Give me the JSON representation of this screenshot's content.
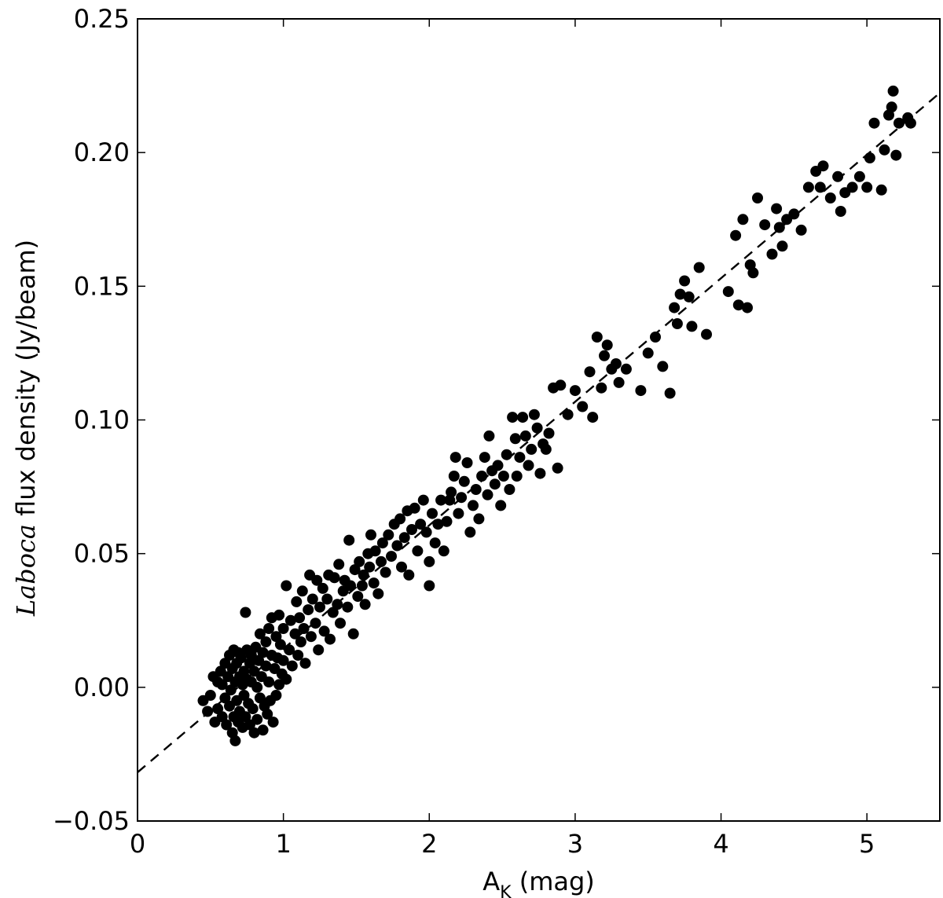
{
  "chart_data": {
    "type": "scatter",
    "title": "",
    "xlabel": {
      "main": "A",
      "sub": "K",
      "rest": " (mag)"
    },
    "ylabel": {
      "italic": "Laboca",
      "rest": " flux density (Jy/beam)"
    },
    "xlim": [
      0,
      5.5
    ],
    "ylim": [
      -0.05,
      0.25
    ],
    "xticks": [
      0,
      1,
      2,
      3,
      4,
      5
    ],
    "xtick_labels": [
      "0",
      "1",
      "2",
      "3",
      "4",
      "5"
    ],
    "yticks": [
      -0.05,
      0,
      0.05,
      0.1,
      0.15,
      0.2,
      0.25
    ],
    "ytick_labels": [
      "−0.05",
      "0.00",
      "0.05",
      "0.10",
      "0.15",
      "0.20",
      "0.25"
    ],
    "grid": false,
    "marker_color": "#000000",
    "fit_line": {
      "style": "dashed",
      "color": "#000000",
      "slope": 0.0462,
      "intercept": -0.0318
    },
    "series": [
      {
        "points": [
          [
            0.45,
            -0.005
          ],
          [
            0.48,
            -0.009
          ],
          [
            0.5,
            -0.003
          ],
          [
            0.52,
            0.004
          ],
          [
            0.53,
            -0.013
          ],
          [
            0.55,
            0.002
          ],
          [
            0.55,
            -0.008
          ],
          [
            0.57,
            0.006
          ],
          [
            0.58,
            -0.011
          ],
          [
            0.58,
            0.001
          ],
          [
            0.6,
            0.009
          ],
          [
            0.6,
            -0.004
          ],
          [
            0.61,
            -0.014
          ],
          [
            0.62,
            0.004
          ],
          [
            0.63,
            0.012
          ],
          [
            0.63,
            -0.007
          ],
          [
            0.64,
            -0.001
          ],
          [
            0.65,
            0.007
          ],
          [
            0.65,
            -0.017
          ],
          [
            0.66,
            0.014
          ],
          [
            0.66,
            -0.011
          ],
          [
            0.67,
            0.002
          ],
          [
            0.67,
            -0.02
          ],
          [
            0.68,
            0.009
          ],
          [
            0.68,
            -0.005
          ],
          [
            0.69,
            0.013
          ],
          [
            0.69,
            -0.013
          ],
          [
            0.7,
            0.004
          ],
          [
            0.7,
            -0.009
          ],
          [
            0.71,
            0.011
          ],
          [
            0.72,
            0.001
          ],
          [
            0.72,
            -0.015
          ],
          [
            0.73,
            0.006
          ],
          [
            0.73,
            -0.003
          ],
          [
            0.74,
            0.028
          ],
          [
            0.74,
            -0.011
          ],
          [
            0.75,
            0.014
          ],
          [
            0.75,
            0.003
          ],
          [
            0.76,
            -0.006
          ],
          [
            0.77,
            0.009
          ],
          [
            0.77,
            -0.014
          ],
          [
            0.78,
            0.002
          ],
          [
            0.78,
            0.012
          ],
          [
            0.79,
            -0.008
          ],
          [
            0.8,
            0.006
          ],
          [
            0.8,
            -0.017
          ],
          [
            0.81,
            0.015
          ],
          [
            0.82,
            0.0
          ],
          [
            0.82,
            -0.012
          ],
          [
            0.83,
            0.01
          ],
          [
            0.84,
            -0.004
          ],
          [
            0.84,
            0.02
          ],
          [
            0.85,
            0.004
          ],
          [
            0.86,
            -0.016
          ],
          [
            0.86,
            0.013
          ],
          [
            0.87,
            -0.007
          ],
          [
            0.88,
            0.008
          ],
          [
            0.88,
            0.017
          ],
          [
            0.89,
            -0.01
          ],
          [
            0.9,
            0.002
          ],
          [
            0.9,
            0.022
          ],
          [
            0.91,
            -0.005
          ],
          [
            0.92,
            0.012
          ],
          [
            0.92,
            0.026
          ],
          [
            0.93,
            -0.013
          ],
          [
            0.94,
            0.007
          ],
          [
            0.95,
            0.019
          ],
          [
            0.95,
            -0.003
          ],
          [
            0.96,
            0.011
          ],
          [
            0.97,
            0.027
          ],
          [
            0.97,
            0.001
          ],
          [
            0.98,
            0.016
          ],
          [
            0.99,
            0.005
          ],
          [
            1.0,
            0.022
          ],
          [
            1.0,
            0.01
          ],
          [
            1.02,
            0.038
          ],
          [
            1.02,
            0.003
          ],
          [
            1.04,
            0.014
          ],
          [
            1.05,
            0.025
          ],
          [
            1.06,
            0.008
          ],
          [
            1.08,
            0.02
          ],
          [
            1.09,
            0.032
          ],
          [
            1.1,
            0.012
          ],
          [
            1.11,
            0.026
          ],
          [
            1.12,
            0.017
          ],
          [
            1.13,
            0.036
          ],
          [
            1.14,
            0.022
          ],
          [
            1.15,
            0.009
          ],
          [
            1.17,
            0.029
          ],
          [
            1.18,
            0.042
          ],
          [
            1.19,
            0.019
          ],
          [
            1.2,
            0.033
          ],
          [
            1.22,
            0.024
          ],
          [
            1.23,
            0.04
          ],
          [
            1.24,
            0.014
          ],
          [
            1.25,
            0.03
          ],
          [
            1.27,
            0.037
          ],
          [
            1.28,
            0.021
          ],
          [
            1.3,
            0.033
          ],
          [
            1.31,
            0.042
          ],
          [
            1.32,
            0.018
          ],
          [
            1.34,
            0.028
          ],
          [
            1.35,
            0.041
          ],
          [
            1.37,
            0.031
          ],
          [
            1.38,
            0.046
          ],
          [
            1.39,
            0.024
          ],
          [
            1.41,
            0.036
          ],
          [
            1.42,
            0.04
          ],
          [
            1.44,
            0.03
          ],
          [
            1.45,
            0.055
          ],
          [
            1.46,
            0.038
          ],
          [
            1.48,
            0.02
          ],
          [
            1.49,
            0.044
          ],
          [
            1.51,
            0.034
          ],
          [
            1.52,
            0.047
          ],
          [
            1.54,
            0.038
          ],
          [
            1.55,
            0.042
          ],
          [
            1.56,
            0.031
          ],
          [
            1.58,
            0.05
          ],
          [
            1.59,
            0.045
          ],
          [
            1.6,
            0.057
          ],
          [
            1.62,
            0.039
          ],
          [
            1.63,
            0.051
          ],
          [
            1.65,
            0.035
          ],
          [
            1.67,
            0.047
          ],
          [
            1.68,
            0.054
          ],
          [
            1.7,
            0.043
          ],
          [
            1.72,
            0.057
          ],
          [
            1.74,
            0.049
          ],
          [
            1.76,
            0.061
          ],
          [
            1.78,
            0.053
          ],
          [
            1.8,
            0.063
          ],
          [
            1.81,
            0.045
          ],
          [
            1.83,
            0.056
          ],
          [
            1.85,
            0.066
          ],
          [
            1.86,
            0.042
          ],
          [
            1.88,
            0.059
          ],
          [
            1.9,
            0.067
          ],
          [
            1.92,
            0.051
          ],
          [
            1.94,
            0.061
          ],
          [
            1.96,
            0.07
          ],
          [
            1.98,
            0.058
          ],
          [
            2.0,
            0.047
          ],
          [
            2.0,
            0.038
          ],
          [
            2.02,
            0.065
          ],
          [
            2.04,
            0.054
          ],
          [
            2.06,
            0.061
          ],
          [
            2.08,
            0.07
          ],
          [
            2.1,
            0.051
          ],
          [
            2.12,
            0.062
          ],
          [
            2.14,
            0.07
          ],
          [
            2.15,
            0.073
          ],
          [
            2.17,
            0.079
          ],
          [
            2.18,
            0.086
          ],
          [
            2.2,
            0.065
          ],
          [
            2.22,
            0.071
          ],
          [
            2.24,
            0.077
          ],
          [
            2.26,
            0.084
          ],
          [
            2.28,
            0.058
          ],
          [
            2.3,
            0.068
          ],
          [
            2.32,
            0.074
          ],
          [
            2.34,
            0.063
          ],
          [
            2.36,
            0.079
          ],
          [
            2.38,
            0.086
          ],
          [
            2.4,
            0.072
          ],
          [
            2.41,
            0.094
          ],
          [
            2.43,
            0.081
          ],
          [
            2.45,
            0.076
          ],
          [
            2.47,
            0.083
          ],
          [
            2.49,
            0.068
          ],
          [
            2.51,
            0.079
          ],
          [
            2.53,
            0.087
          ],
          [
            2.55,
            0.074
          ],
          [
            2.57,
            0.101
          ],
          [
            2.59,
            0.093
          ],
          [
            2.6,
            0.079
          ],
          [
            2.62,
            0.086
          ],
          [
            2.64,
            0.101
          ],
          [
            2.66,
            0.094
          ],
          [
            2.68,
            0.083
          ],
          [
            2.7,
            0.089
          ],
          [
            2.72,
            0.102
          ],
          [
            2.74,
            0.097
          ],
          [
            2.76,
            0.08
          ],
          [
            2.78,
            0.091
          ],
          [
            2.8,
            0.089
          ],
          [
            2.82,
            0.095
          ],
          [
            2.85,
            0.112
          ],
          [
            2.88,
            0.082
          ],
          [
            2.9,
            0.113
          ],
          [
            2.95,
            0.102
          ],
          [
            3.0,
            0.111
          ],
          [
            3.05,
            0.105
          ],
          [
            3.1,
            0.118
          ],
          [
            3.12,
            0.101
          ],
          [
            3.15,
            0.131
          ],
          [
            3.18,
            0.112
          ],
          [
            3.2,
            0.124
          ],
          [
            3.22,
            0.128
          ],
          [
            3.25,
            0.119
          ],
          [
            3.28,
            0.121
          ],
          [
            3.3,
            0.114
          ],
          [
            3.35,
            0.119
          ],
          [
            3.45,
            0.111
          ],
          [
            3.5,
            0.125
          ],
          [
            3.55,
            0.131
          ],
          [
            3.6,
            0.12
          ],
          [
            3.65,
            0.11
          ],
          [
            3.68,
            0.142
          ],
          [
            3.7,
            0.136
          ],
          [
            3.72,
            0.147
          ],
          [
            3.75,
            0.152
          ],
          [
            3.78,
            0.146
          ],
          [
            3.8,
            0.135
          ],
          [
            3.85,
            0.157
          ],
          [
            3.9,
            0.132
          ],
          [
            4.05,
            0.148
          ],
          [
            4.1,
            0.169
          ],
          [
            4.12,
            0.143
          ],
          [
            4.15,
            0.175
          ],
          [
            4.18,
            0.142
          ],
          [
            4.2,
            0.158
          ],
          [
            4.22,
            0.155
          ],
          [
            4.25,
            0.183
          ],
          [
            4.3,
            0.173
          ],
          [
            4.35,
            0.162
          ],
          [
            4.38,
            0.179
          ],
          [
            4.4,
            0.172
          ],
          [
            4.42,
            0.165
          ],
          [
            4.45,
            0.175
          ],
          [
            4.5,
            0.177
          ],
          [
            4.55,
            0.171
          ],
          [
            4.6,
            0.187
          ],
          [
            4.65,
            0.193
          ],
          [
            4.68,
            0.187
          ],
          [
            4.7,
            0.195
          ],
          [
            4.75,
            0.183
          ],
          [
            4.8,
            0.191
          ],
          [
            4.82,
            0.178
          ],
          [
            4.85,
            0.185
          ],
          [
            4.9,
            0.187
          ],
          [
            4.95,
            0.191
          ],
          [
            5.0,
            0.187
          ],
          [
            5.02,
            0.198
          ],
          [
            5.05,
            0.211
          ],
          [
            5.1,
            0.186
          ],
          [
            5.12,
            0.201
          ],
          [
            5.15,
            0.214
          ],
          [
            5.17,
            0.217
          ],
          [
            5.18,
            0.223
          ],
          [
            5.2,
            0.199
          ],
          [
            5.22,
            0.211
          ],
          [
            5.28,
            0.213
          ],
          [
            5.3,
            0.211
          ]
        ]
      }
    ]
  }
}
